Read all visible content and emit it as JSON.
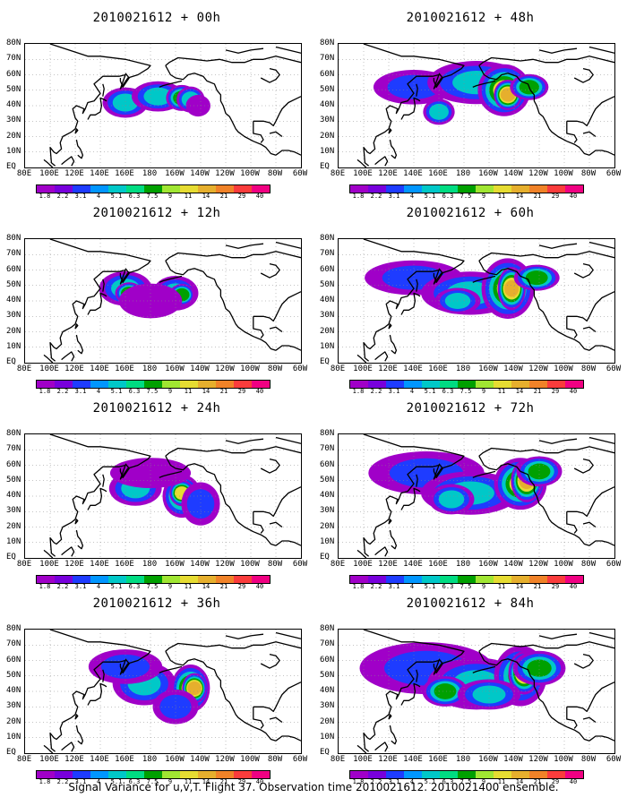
{
  "panels": [
    {
      "title": "2010021612 + 00h",
      "lead_hours": 0,
      "spread": 0.45,
      "blobs": [
        [
          160,
          42,
          10,
          5,
          5.1
        ],
        [
          186,
          46,
          12,
          5,
          5.1
        ],
        [
          205,
          45,
          6,
          4,
          9
        ],
        [
          212,
          44,
          5,
          4,
          5.1
        ],
        [
          218,
          40,
          4,
          3,
          1.8
        ]
      ]
    },
    {
      "title": "2010021612 + 48h",
      "lead_hours": 48,
      "spread": 0.75,
      "blobs": [
        [
          140,
          52,
          20,
          6,
          3.1
        ],
        [
          190,
          55,
          25,
          8,
          5.1
        ],
        [
          212,
          50,
          12,
          10,
          11
        ],
        [
          215,
          47,
          5,
          5,
          14
        ],
        [
          232,
          52,
          8,
          4,
          7.5
        ],
        [
          160,
          36,
          6,
          4,
          5.1
        ]
      ]
    },
    {
      "title": "2010021612 + 12h",
      "lead_hours": 12,
      "spread": 0.55,
      "blobs": [
        [
          160,
          48,
          12,
          6,
          5.1
        ],
        [
          163,
          45,
          5,
          3,
          7.5
        ],
        [
          200,
          45,
          10,
          6,
          5.1
        ],
        [
          205,
          44,
          4,
          3,
          7.5
        ],
        [
          180,
          40,
          15,
          6,
          1.8
        ]
      ]
    },
    {
      "title": "2010021612 + 60h",
      "lead_hours": 60,
      "spread": 0.85,
      "blobs": [
        [
          140,
          55,
          25,
          6,
          3.1
        ],
        [
          185,
          45,
          25,
          8,
          5.1
        ],
        [
          215,
          48,
          12,
          12,
          11
        ],
        [
          218,
          48,
          5,
          8,
          14
        ],
        [
          175,
          40,
          10,
          4,
          5.1
        ],
        [
          238,
          55,
          10,
          4,
          7.5
        ]
      ]
    },
    {
      "title": "2010021612 + 24h",
      "lead_hours": 24,
      "spread": 0.6,
      "blobs": [
        [
          168,
          45,
          12,
          6,
          5.1
        ],
        [
          205,
          40,
          8,
          8,
          9
        ],
        [
          205,
          42,
          4,
          4,
          11
        ],
        [
          220,
          35,
          8,
          8,
          3.1
        ],
        [
          180,
          55,
          20,
          5,
          1.8
        ]
      ]
    },
    {
      "title": "2010021612 + 72h",
      "lead_hours": 72,
      "spread": 0.95,
      "blobs": [
        [
          150,
          55,
          30,
          8,
          4
        ],
        [
          185,
          42,
          25,
          8,
          5.1
        ],
        [
          225,
          48,
          12,
          10,
          11
        ],
        [
          230,
          50,
          6,
          8,
          14
        ],
        [
          170,
          38,
          10,
          5,
          6.3
        ],
        [
          240,
          56,
          10,
          5,
          7.5
        ]
      ]
    },
    {
      "title": "2010021612 + 36h",
      "lead_hours": 36,
      "spread": 0.65,
      "blobs": [
        [
          175,
          45,
          15,
          8,
          5.1
        ],
        [
          212,
          42,
          8,
          9,
          11
        ],
        [
          215,
          42,
          4,
          5,
          14
        ],
        [
          200,
          30,
          10,
          6,
          3.1
        ],
        [
          160,
          56,
          18,
          6,
          3.1
        ]
      ]
    },
    {
      "title": "2010021612 + 84h",
      "lead_hours": 84,
      "spread": 1.0,
      "blobs": [
        [
          150,
          55,
          35,
          10,
          4
        ],
        [
          190,
          45,
          25,
          10,
          6.3
        ],
        [
          225,
          50,
          12,
          12,
          9
        ],
        [
          228,
          52,
          6,
          8,
          14
        ],
        [
          165,
          40,
          10,
          5,
          7.5
        ],
        [
          240,
          55,
          12,
          6,
          9
        ],
        [
          200,
          38,
          15,
          5,
          5.1
        ]
      ]
    }
  ],
  "lat_labels": [
    "80N",
    "70N",
    "60N",
    "50N",
    "40N",
    "30N",
    "20N",
    "10N",
    "EQ"
  ],
  "lon_labels": [
    "80E",
    "100E",
    "120E",
    "140E",
    "160E",
    "180",
    "160W",
    "140W",
    "120W",
    "100W",
    "80W",
    "60W"
  ],
  "colorbar": {
    "labels": [
      "1.8",
      "2.2",
      "3.1",
      "4",
      "5.1",
      "6.3",
      "7.5",
      "9",
      "11",
      "14",
      "21",
      "29",
      "40"
    ],
    "colors": [
      "#a000c8",
      "#7800dc",
      "#1e3cff",
      "#0096ff",
      "#00c8c8",
      "#00dc82",
      "#00a000",
      "#a0e632",
      "#e6dc32",
      "#e6af2d",
      "#f08228",
      "#fa3c3c",
      "#f00082"
    ]
  },
  "footer": "Signal Variance for u,v,T. Flight 37. Observation time 2010021612. 2010021400 ensemble."
}
